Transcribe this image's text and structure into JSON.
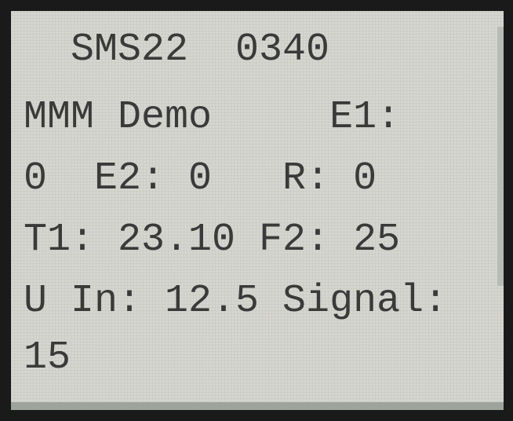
{
  "screen": {
    "lines": [
      "SMS22  0340",
      "MMM Demo     E1:",
      "0  E2: 0   R: 0",
      "T1: 23.10 F2: 25",
      "U In: 12.5 Signal:",
      "15"
    ]
  }
}
